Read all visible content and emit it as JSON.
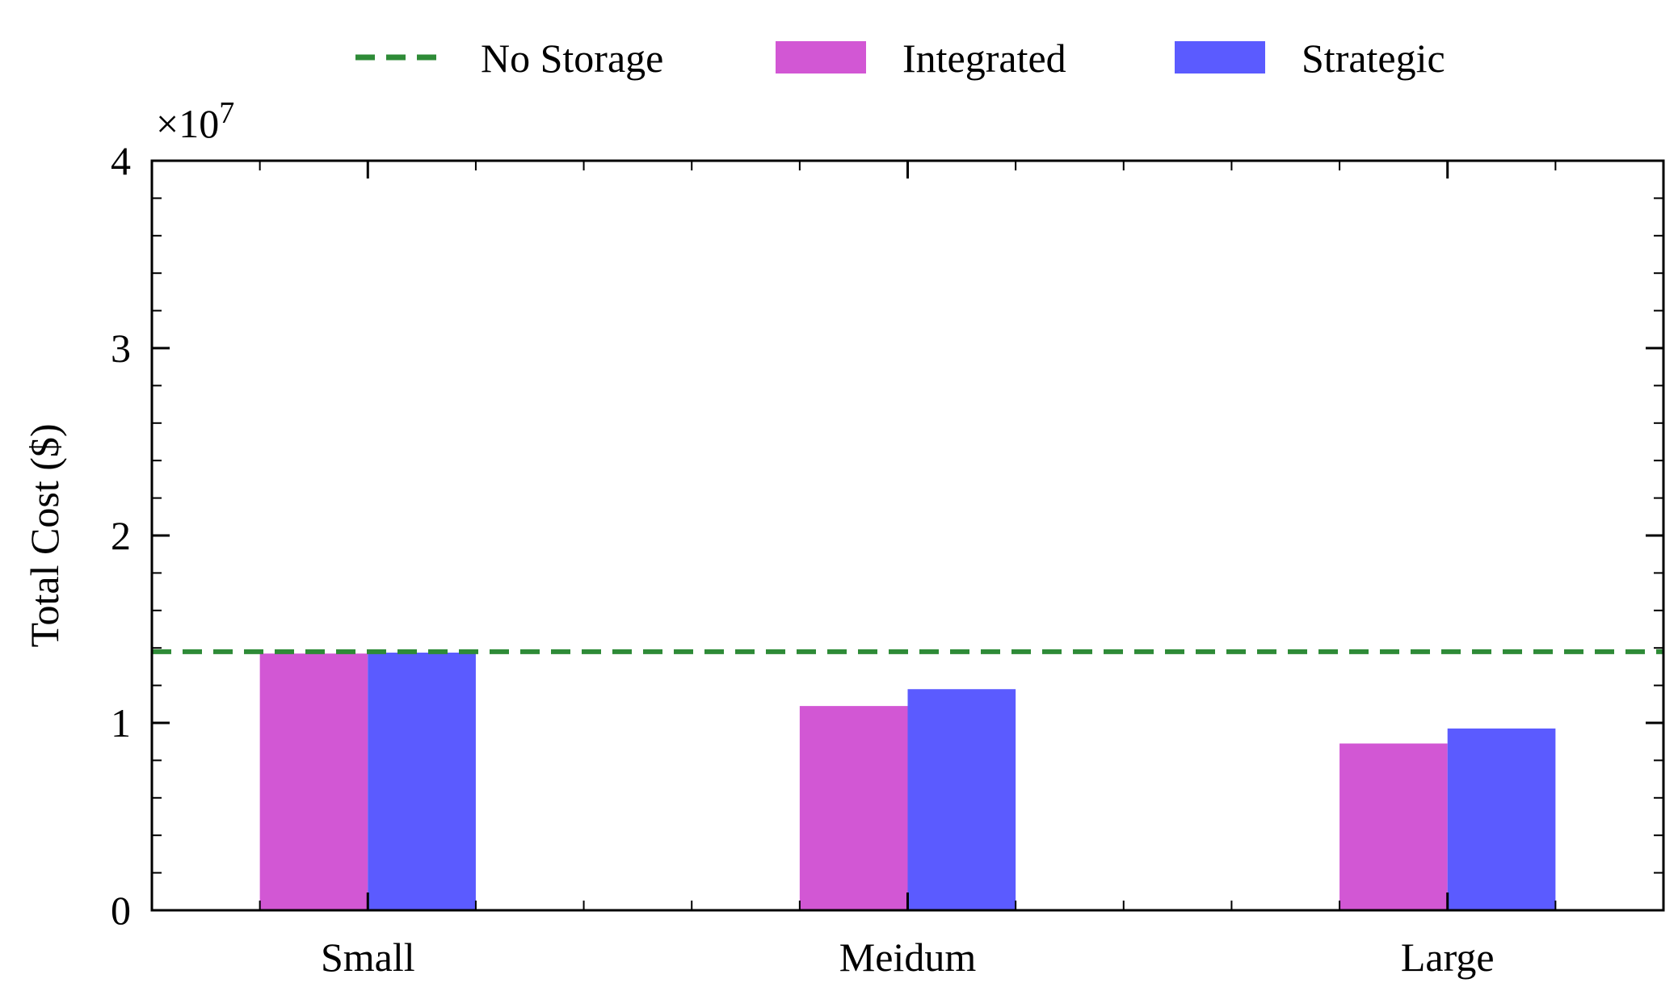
{
  "chart_data": {
    "type": "bar",
    "categories": [
      "Small",
      "Meidum",
      "Large"
    ],
    "series": [
      {
        "name": "Integrated",
        "values": [
          13700000,
          10900000,
          8900000
        ],
        "color": "#d257d4"
      },
      {
        "name": "Strategic",
        "values": [
          13750000,
          11800000,
          9700000
        ],
        "color": "#5b5bff"
      }
    ],
    "reference_lines": [
      {
        "name": "No Storage",
        "value": 13800000,
        "color": "#2e8b37",
        "style": "dashed"
      }
    ],
    "ylabel": "Total Cost ($)",
    "xlabel": "",
    "ylim": [
      0,
      40000000
    ],
    "yticks": [
      0,
      10000000,
      20000000,
      30000000,
      40000000
    ],
    "ytick_labels": [
      "0",
      "1",
      "2",
      "3",
      "4"
    ],
    "y_multiplier": "×10",
    "y_multiplier_exponent": "7",
    "legend": {
      "placement": "top-center, outside",
      "entries": [
        "No Storage",
        "Integrated",
        "Strategic"
      ]
    },
    "grid": false
  }
}
